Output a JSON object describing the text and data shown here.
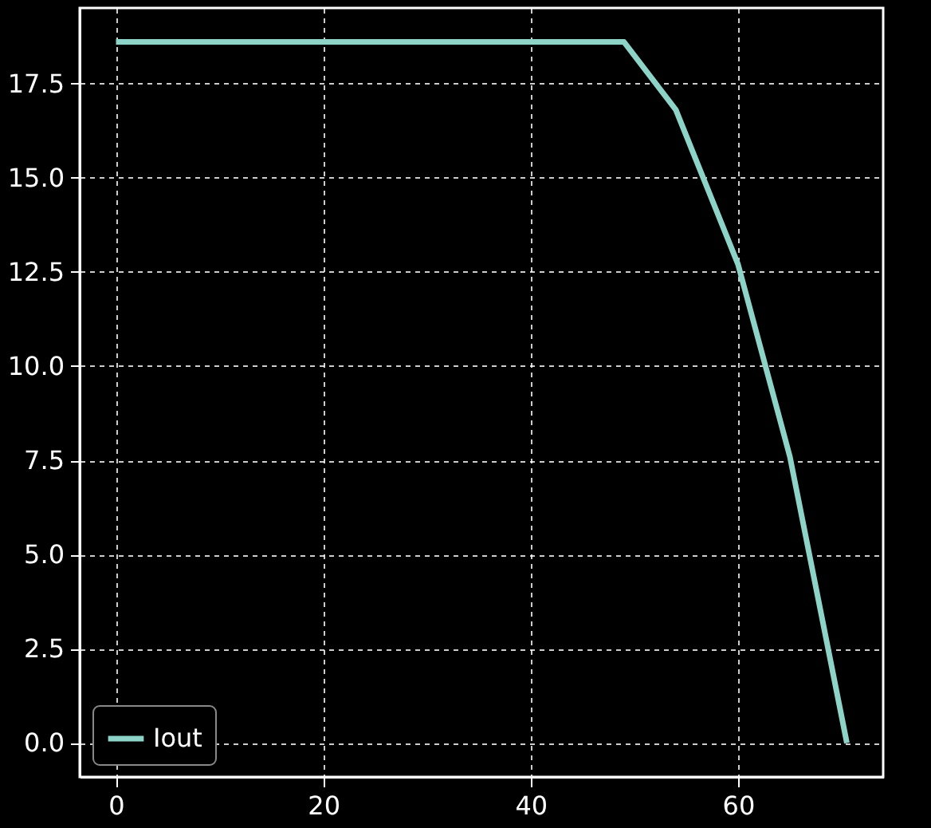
{
  "chart_data": {
    "type": "line",
    "x": [
      0,
      49,
      54,
      60,
      65,
      70.5
    ],
    "series": [
      {
        "name": "Iout",
        "color": "#8dd3c7",
        "values": [
          18.6,
          18.6,
          16.8,
          12.7,
          7.6,
          0
        ]
      }
    ],
    "xlim": [
      -3.5,
      74
    ],
    "xticks": [
      0,
      20,
      40,
      60
    ],
    "ylim": [
      -0.9,
      19.5
    ],
    "yticks": [
      {
        "value": 0,
        "label": "0.0"
      },
      {
        "value": 2.5,
        "label": "2.5"
      },
      {
        "value": 5,
        "label": "5.0"
      },
      {
        "value": 7.5,
        "label": "7.5"
      },
      {
        "value": 10,
        "label": "10.0"
      },
      {
        "value": 12.5,
        "label": "12.5"
      },
      {
        "value": 15,
        "label": "15.0"
      },
      {
        "value": 17.5,
        "label": "17.5"
      }
    ],
    "grid": true,
    "legend": "bottom left",
    "line_style": "solid"
  }
}
